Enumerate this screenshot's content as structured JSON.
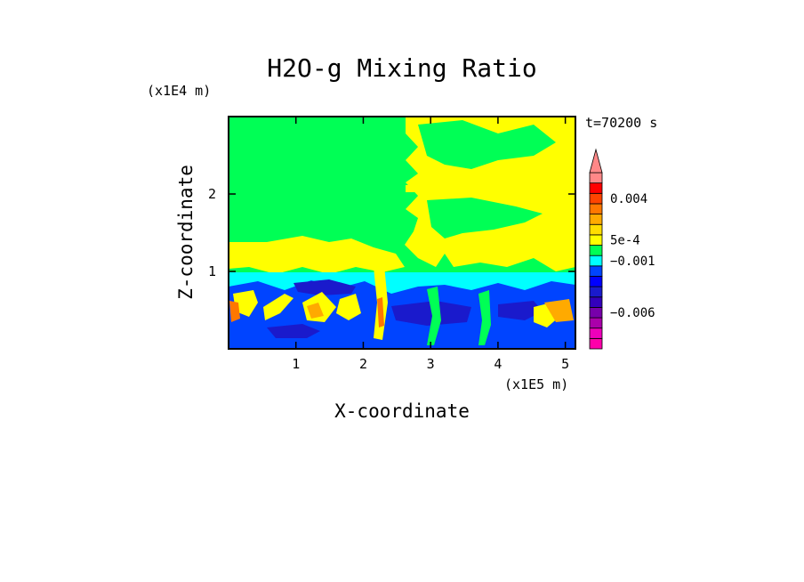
{
  "chart_data": {
    "type": "heatmap",
    "title": "H2O-g Mixing Ratio",
    "xlabel": "X-coordinate",
    "ylabel": "Z-coordinate",
    "x_scale_label": "(x1E5 m)",
    "y_scale_label": "(x1E4 m)",
    "time_label": "t=70200 s",
    "xlim": [
      0,
      5.15
    ],
    "ylim": [
      0,
      3.0
    ],
    "x_ticks": [
      "1",
      "2",
      "3",
      "4",
      "5"
    ],
    "y_ticks": [
      "1",
      "2"
    ],
    "colorbar": {
      "bins": [
        {
          "value": -0.009,
          "color": "#ff00aa"
        },
        {
          "value": -0.008,
          "color": "#ee00bb"
        },
        {
          "value": -0.007,
          "color": "#aa00aa"
        },
        {
          "value": -0.006,
          "color": "#7700aa"
        },
        {
          "value": -0.005,
          "color": "#3300bb"
        },
        {
          "value": -0.004,
          "color": "#1a1acc"
        },
        {
          "value": -0.003,
          "color": "#0000ff"
        },
        {
          "value": -0.002,
          "color": "#0044ff"
        },
        {
          "value": -0.001,
          "color": "#00ffff"
        },
        {
          "value": 0.0,
          "color": "#00ff55"
        },
        {
          "value": 0.0005,
          "color": "#ffff00"
        },
        {
          "value": 0.001,
          "color": "#ffdd00"
        },
        {
          "value": 0.002,
          "color": "#ffaa00"
        },
        {
          "value": 0.003,
          "color": "#ff7700"
        },
        {
          "value": 0.004,
          "color": "#ff4400"
        },
        {
          "value": 0.005,
          "color": "#ff0000"
        },
        {
          "value": 0.006,
          "color": "#ff8888"
        }
      ],
      "labels": [
        "0.004",
        "5e-4",
        "−0.001",
        "−0.006"
      ],
      "overflow_arrow": true
    },
    "layers": [
      {
        "name": "upper",
        "color": "#00ff55"
      },
      {
        "name": "patches",
        "color": "#ffff00"
      },
      {
        "name": "band",
        "color": "#00ffff"
      },
      {
        "name": "lower",
        "color": "#0044ff"
      },
      {
        "name": "dark",
        "color": "#1a1acc"
      },
      {
        "name": "hot",
        "color": "#ff7700"
      }
    ]
  }
}
